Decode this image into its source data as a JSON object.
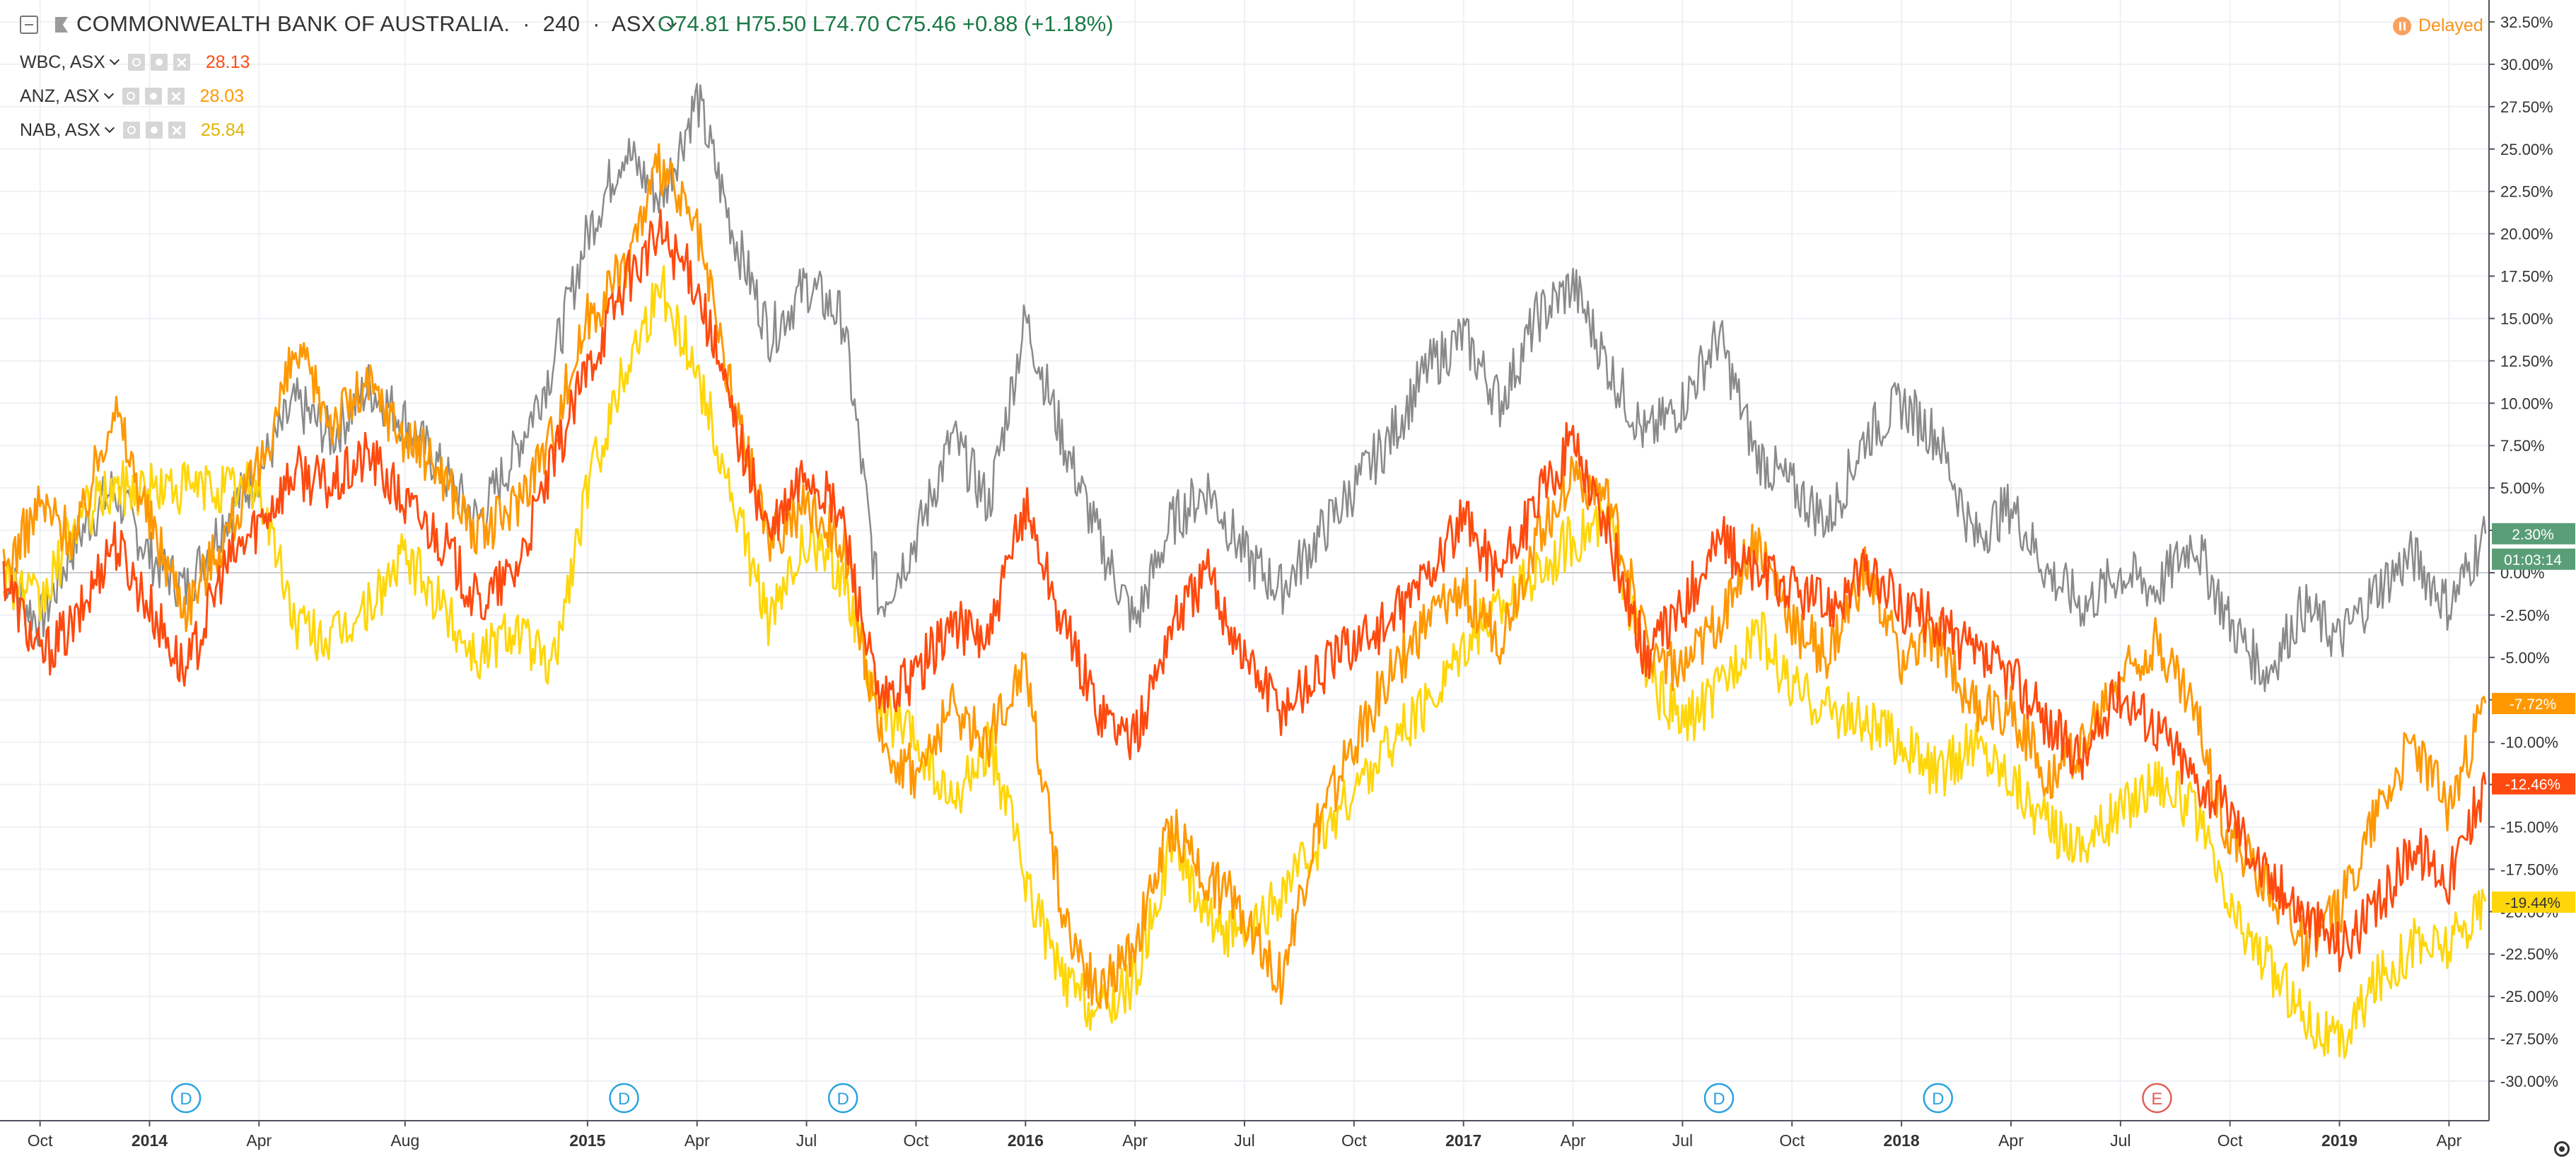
{
  "header": {
    "title": "COMMONWEALTH BANK OF AUSTRALIA.",
    "interval": "240",
    "exchange": "ASX",
    "ohlc": "O74.81  H75.50  L74.70  C75.46  +0.88  (+1.18%)",
    "status": "Delayed"
  },
  "legend": [
    {
      "symbol": "WBC, ASX",
      "value": "28.13",
      "color": "#ff4a0f"
    },
    {
      "symbol": "ANZ, ASX",
      "value": "28.03",
      "color": "#ff9800"
    },
    {
      "symbol": "NAB, ASX",
      "value": "25.84",
      "color": "#ffd60a"
    }
  ],
  "price_tags": [
    {
      "text": "2.30%",
      "color": "#5a9e78"
    },
    {
      "text": "01:03:14",
      "color": "#5a9e78"
    },
    {
      "text": "-7.72%",
      "color": "#ff9800"
    },
    {
      "text": "-12.46%",
      "color": "#ff4a0f"
    },
    {
      "text": "-19.44%",
      "color": "#ffd60a"
    }
  ],
  "chart_data": {
    "type": "line",
    "y_unit": "%",
    "ylim": [
      -31.5,
      33.5
    ],
    "y_ticks": [
      "32.50%",
      "30.00%",
      "27.50%",
      "25.00%",
      "22.50%",
      "20.00%",
      "17.50%",
      "15.00%",
      "12.50%",
      "10.00%",
      "7.50%",
      "5.00%",
      "2.50%",
      "0.00%",
      "-2.50%",
      "-5.00%",
      "-7.50%",
      "-10.00%",
      "-12.50%",
      "-15.00%",
      "-17.50%",
      "-20.00%",
      "-22.50%",
      "-25.00%",
      "-27.50%",
      "-30.00%"
    ],
    "x_ticks": [
      "Oct",
      "2014",
      "Apr",
      "Aug",
      "2015",
      "Apr",
      "Jul",
      "Oct",
      "2016",
      "Apr",
      "Jul",
      "Oct",
      "2017",
      "Apr",
      "Jul",
      "Oct",
      "2018",
      "Apr",
      "Jul",
      "Oct",
      "2019",
      "Apr"
    ],
    "x_bold_ticks": [
      "2014",
      "2015",
      "2016",
      "2017",
      "2018",
      "2019"
    ],
    "x": [
      "2013-09",
      "2013-10",
      "2013-11",
      "2013-12",
      "2014-01",
      "2014-02",
      "2014-03",
      "2014-04",
      "2014-05",
      "2014-06",
      "2014-07",
      "2014-08",
      "2014-09",
      "2014-10",
      "2014-11",
      "2014-12",
      "2015-01",
      "2015-02",
      "2015-03",
      "2015-04",
      "2015-05",
      "2015-06",
      "2015-07",
      "2015-08",
      "2015-09",
      "2015-10",
      "2015-11",
      "2015-12",
      "2016-01",
      "2016-02",
      "2016-03",
      "2016-04",
      "2016-05",
      "2016-06",
      "2016-07",
      "2016-08",
      "2016-09",
      "2016-10",
      "2016-11",
      "2016-12",
      "2017-01",
      "2017-02",
      "2017-03",
      "2017-04",
      "2017-05",
      "2017-06",
      "2017-07",
      "2017-08",
      "2017-09",
      "2017-10",
      "2017-11",
      "2017-12",
      "2018-01",
      "2018-02",
      "2018-03",
      "2018-04",
      "2018-05",
      "2018-06",
      "2018-07",
      "2018-08",
      "2018-09",
      "2018-10",
      "2018-11",
      "2018-12",
      "2019-01",
      "2019-02",
      "2019-03",
      "2019-04",
      "2019-05"
    ],
    "series": [
      {
        "name": "COMMONWEALTH BANK OF AUSTRALIA.",
        "color": "#8a8a8a",
        "values": [
          0,
          -3,
          2,
          5,
          1,
          -1,
          3,
          6,
          10,
          8,
          11,
          9,
          6,
          3,
          7,
          12,
          20,
          25,
          22,
          28,
          20,
          14,
          17,
          15,
          -2,
          2,
          8,
          4,
          15,
          8,
          2,
          -3,
          3,
          5,
          1,
          -1,
          2,
          5,
          8,
          12,
          14,
          10,
          15,
          17,
          12,
          8,
          10,
          14,
          7,
          5,
          3,
          8,
          10,
          8,
          2,
          4,
          0,
          -2,
          0,
          -1,
          2,
          -3,
          -6,
          -2,
          -4,
          -1,
          1,
          -2,
          2.3
        ]
      },
      {
        "name": "WBC, ASX",
        "color": "#ff4a0f",
        "values": [
          0,
          -5,
          -3,
          2,
          -2,
          -6,
          0,
          3,
          6,
          5,
          7,
          4,
          2,
          -2,
          0,
          6,
          12,
          17,
          20,
          17,
          9,
          2,
          6,
          3,
          -8,
          -6,
          -3,
          -4,
          4,
          -3,
          -8,
          -10,
          -3,
          0,
          -5,
          -8,
          -6,
          -4,
          -3,
          0,
          3,
          0,
          4,
          8,
          2,
          -5,
          -2,
          2,
          0,
          -1,
          -2,
          0,
          -2,
          -3,
          -5,
          -6,
          -9,
          -11,
          -7,
          -9,
          -12,
          -14,
          -18,
          -20,
          -22,
          -20,
          -16,
          -18,
          -12.5
        ]
      },
      {
        "name": "ANZ, ASX",
        "color": "#ff9800",
        "values": [
          0,
          4,
          2,
          10,
          3,
          -2,
          2,
          6,
          13,
          9,
          11,
          8,
          6,
          2,
          4,
          8,
          15,
          18,
          24,
          20,
          10,
          2,
          4,
          2,
          -10,
          -12,
          -8,
          -10,
          -5,
          -20,
          -25,
          -22,
          -15,
          -18,
          -20,
          -24,
          -15,
          -10,
          -6,
          -3,
          -1,
          -4,
          2,
          6,
          4,
          -4,
          -6,
          -3,
          2,
          -3,
          -5,
          0,
          -5,
          -4,
          -8,
          -8,
          -12,
          -10,
          -6,
          -4,
          -8,
          -16,
          -18,
          -22,
          -20,
          -14,
          -10,
          -14,
          -7.7
        ]
      },
      {
        "name": "NAB, ASX",
        "color": "#ffd60a",
        "values": [
          0,
          -2,
          3,
          5,
          5,
          5,
          5,
          5,
          -3,
          -4,
          -2,
          1,
          -2,
          -5,
          -3,
          -6,
          5,
          12,
          17,
          12,
          4,
          -3,
          2,
          0,
          -8,
          -10,
          -14,
          -10,
          -18,
          -24,
          -26,
          -24,
          -16,
          -20,
          -22,
          -19,
          -16,
          -13,
          -10,
          -8,
          -4,
          -2,
          0,
          2,
          3,
          -6,
          -9,
          -7,
          -3,
          -7,
          -8,
          -9,
          -10,
          -12,
          -10,
          -12,
          -15,
          -16,
          -14,
          -12,
          -14,
          -20,
          -23,
          -26,
          -28,
          -24,
          -22,
          -22,
          -19.4
        ]
      }
    ],
    "events": [
      {
        "date": "2014-02",
        "label": "D"
      },
      {
        "date": "2015-02",
        "label": "D"
      },
      {
        "date": "2015-08",
        "label": "D"
      },
      {
        "date": "2017-08",
        "label": "D"
      },
      {
        "date": "2018-02",
        "label": "D"
      },
      {
        "date": "2018-08",
        "label": "E"
      }
    ]
  }
}
